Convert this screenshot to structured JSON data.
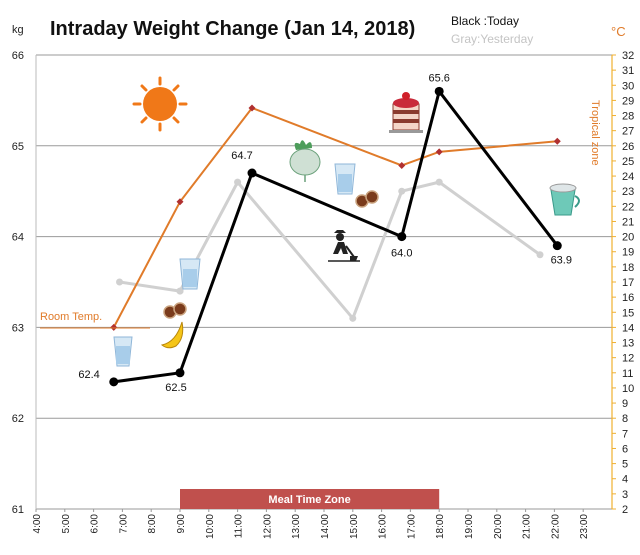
{
  "chart_data": {
    "type": "line",
    "title": "Intraday Weight Change (Jan 14, 2018)",
    "legend": {
      "today": "Black :Today",
      "yesterday": "Gray:Yesterday",
      "placement": "top-right"
    },
    "y_left": {
      "unit": "kg",
      "ylim": [
        61,
        66
      ],
      "ticks": [
        "61",
        "62",
        "63",
        "64",
        "65",
        "66"
      ]
    },
    "y_right": {
      "unit": "°C",
      "ylim": [
        2,
        32
      ],
      "ticks": [
        "2",
        "3",
        "4",
        "5",
        "6",
        "7",
        "8",
        "9",
        "10",
        "11",
        "12",
        "13",
        "14",
        "15",
        "16",
        "17",
        "18",
        "19",
        "20",
        "21",
        "22",
        "23",
        "24",
        "25",
        "26",
        "27",
        "28",
        "29",
        "30",
        "31",
        "32"
      ]
    },
    "x_axis": {
      "xlim": [
        4,
        24
      ],
      "ticks": [
        "4:00",
        "5:00",
        "6:00",
        "7:00",
        "8:00",
        "9:00",
        "10:00",
        "11:00",
        "12:00",
        "13:00",
        "14:00",
        "15:00",
        "16:00",
        "17:00",
        "18:00",
        "19:00",
        "20:00",
        "21:00",
        "22:00",
        "23:00"
      ]
    },
    "grid": true,
    "series": [
      {
        "name": "Black :Today",
        "axis": "left",
        "color": "#000000",
        "x": [
          6.7,
          9.0,
          11.5,
          16.7,
          18.0,
          22.1
        ],
        "y": [
          62.4,
          62.5,
          64.7,
          64.0,
          65.6,
          63.9
        ],
        "labels": [
          "62.4",
          "62.5",
          "64.7",
          "64.0",
          "65.6",
          "63.9"
        ]
      },
      {
        "name": "Gray:Yesterday",
        "axis": "left",
        "color": "#d0d0d0",
        "segments": [
          {
            "x": [
              6.9,
              9.0
            ],
            "y": [
              63.5,
              63.4
            ]
          },
          {
            "x": [
              9.0,
              11.0,
              15.0,
              16.7,
              18.0,
              21.5
            ],
            "y": [
              63.4,
              64.6,
              63.1,
              64.5,
              64.6,
              63.8
            ]
          }
        ]
      },
      {
        "name": "",
        "axis": "right",
        "color": "#e07b2a",
        "x": [
          6.7,
          9.0,
          11.5,
          16.7,
          18.0,
          22.1
        ],
        "y": [
          14,
          22.3,
          28.5,
          24.7,
          25.6,
          26.3
        ]
      }
    ],
    "annotations": {
      "room_temp": "Room Temp.",
      "tropical": "Tropical zone",
      "meal_zone": "Meal Time Zone",
      "meal_zone_range": [
        9.0,
        18.0
      ]
    }
  },
  "colors": {
    "temperature": "#e07b2a",
    "right_axis": "#f0b030",
    "meal_zone": "#c0504d",
    "gridline": "#9a9a9a",
    "axis": "#999999"
  },
  "icons": [
    "sun-icon",
    "water-glass-icon",
    "cookies-icon",
    "banana-icon",
    "turnip-icon",
    "gardener-icon",
    "cake-icon",
    "cup-icon"
  ]
}
